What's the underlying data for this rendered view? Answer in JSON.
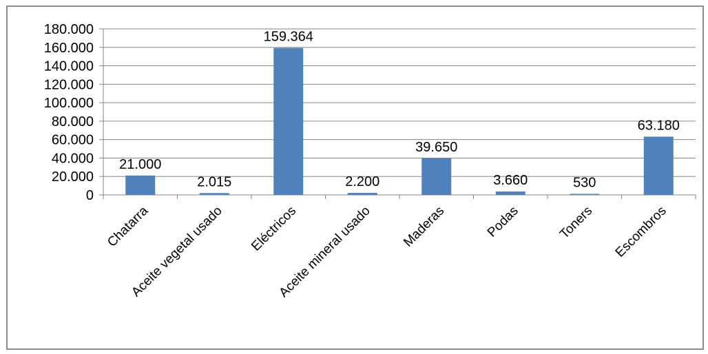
{
  "chart_data": {
    "type": "bar",
    "categories": [
      "Chatarra",
      "Aceite vegetal usado",
      "Eléctricos",
      "Aceite mineral usado",
      "Maderas",
      "Podas",
      "Toners",
      "Escombros"
    ],
    "values": [
      21000,
      2015,
      159364,
      2200,
      39650,
      3660,
      530,
      63180
    ],
    "data_labels": [
      "21.000",
      "2.015",
      "159.364",
      "2.200",
      "39.650",
      "3.660",
      "530",
      "63.180"
    ],
    "y_ticks": [
      0,
      20000,
      40000,
      60000,
      80000,
      100000,
      120000,
      140000,
      160000,
      180000
    ],
    "y_tick_labels": [
      "0",
      "20.000",
      "40.000",
      "60.000",
      "80.000",
      "100.000",
      "120.000",
      "140.000",
      "160.000",
      "180.000"
    ],
    "ylim": [
      0,
      180000
    ],
    "title": "",
    "xlabel": "",
    "ylabel": "",
    "grid": true,
    "legend": "none",
    "colors": {
      "bar": "#4f81bd",
      "grid": "#868686",
      "axis": "#868686"
    }
  }
}
